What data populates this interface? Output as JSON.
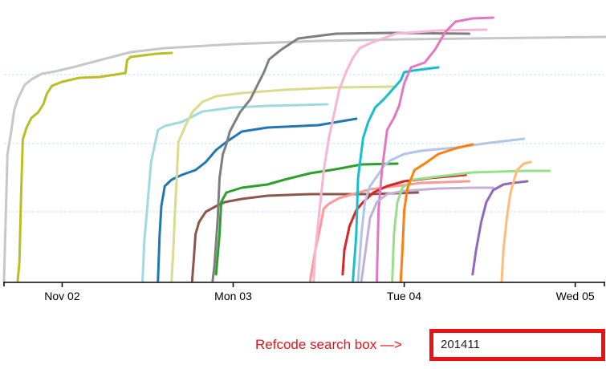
{
  "chart_data": {
    "type": "line",
    "title": "",
    "xlabel": "",
    "ylabel": "",
    "x_axis": {
      "ticks": [
        "Nov 02",
        "Mon 03",
        "Tue 04",
        "Wed 05"
      ],
      "tick_days": [
        2,
        3,
        4,
        5
      ],
      "range_days": [
        1.66,
        5.18
      ]
    },
    "y_range": [
      0,
      354
    ],
    "gridlines_y": [
      88,
      173,
      259
    ],
    "grid": true,
    "series": [
      {
        "color": "#c7c7c7",
        "points": [
          [
            1.66,
            2
          ],
          [
            1.67,
            80
          ],
          [
            1.68,
            160
          ],
          [
            1.7,
            185
          ],
          [
            1.72,
            215
          ],
          [
            1.74,
            228
          ],
          [
            1.78,
            246
          ],
          [
            1.82,
            253
          ],
          [
            1.88,
            260
          ],
          [
            1.96,
            263
          ],
          [
            2.06,
            268
          ],
          [
            2.22,
            277
          ],
          [
            2.4,
            287
          ],
          [
            2.6,
            292
          ],
          [
            3.0,
            297
          ],
          [
            3.5,
            301
          ],
          [
            4.0,
            303
          ],
          [
            5.18,
            306
          ]
        ]
      },
      {
        "color": "#bcbd22",
        "points": [
          [
            1.74,
            2
          ],
          [
            1.75,
            25
          ],
          [
            1.76,
            110
          ],
          [
            1.77,
            178
          ],
          [
            1.79,
            192
          ],
          [
            1.82,
            205
          ],
          [
            1.86,
            212
          ],
          [
            1.89,
            222
          ],
          [
            1.91,
            235
          ],
          [
            1.94,
            245
          ],
          [
            2.0,
            250
          ],
          [
            2.1,
            255
          ],
          [
            2.22,
            256
          ],
          [
            2.37,
            261
          ],
          [
            2.38,
            277
          ],
          [
            2.4,
            281
          ],
          [
            2.55,
            285
          ],
          [
            2.64,
            286
          ]
        ]
      },
      {
        "color": "#9edae5",
        "points": [
          [
            2.47,
            2
          ],
          [
            2.48,
            50
          ],
          [
            2.5,
            100
          ],
          [
            2.52,
            150
          ],
          [
            2.54,
            170
          ],
          [
            2.56,
            190
          ],
          [
            2.6,
            195
          ],
          [
            2.7,
            200
          ],
          [
            2.82,
            213
          ],
          [
            3.0,
            218
          ],
          [
            3.2,
            220
          ],
          [
            3.55,
            222
          ]
        ]
      },
      {
        "color": "#1f77b4",
        "points": [
          [
            2.56,
            2
          ],
          [
            2.57,
            60
          ],
          [
            2.58,
            95
          ],
          [
            2.6,
            120
          ],
          [
            2.64,
            128
          ],
          [
            2.7,
            134
          ],
          [
            2.78,
            140
          ],
          [
            2.84,
            150
          ],
          [
            2.9,
            165
          ],
          [
            2.96,
            175
          ],
          [
            3.05,
            188
          ],
          [
            3.2,
            193
          ],
          [
            3.5,
            196
          ],
          [
            3.72,
            204
          ]
        ]
      },
      {
        "color": "#dbdb8d",
        "points": [
          [
            2.64,
            2
          ],
          [
            2.65,
            40
          ],
          [
            2.66,
            90
          ],
          [
            2.67,
            130
          ],
          [
            2.68,
            175
          ],
          [
            2.72,
            195
          ],
          [
            2.76,
            212
          ],
          [
            2.82,
            225
          ],
          [
            2.9,
            232
          ],
          [
            3.05,
            236
          ],
          [
            3.3,
            240
          ],
          [
            3.6,
            243
          ],
          [
            3.94,
            244
          ]
        ]
      },
      {
        "color": "#8c564b",
        "points": [
          [
            2.76,
            2
          ],
          [
            2.77,
            30
          ],
          [
            2.78,
            60
          ],
          [
            2.8,
            75
          ],
          [
            2.84,
            88
          ],
          [
            2.9,
            95
          ],
          [
            2.95,
            100
          ],
          [
            3.05,
            104
          ],
          [
            3.2,
            108
          ],
          [
            3.45,
            110
          ],
          [
            3.8,
            110
          ],
          [
            4.08,
            112
          ]
        ]
      },
      {
        "color": "#2ca02c",
        "points": [
          [
            2.9,
            10
          ],
          [
            2.92,
            60
          ],
          [
            2.93,
            100
          ],
          [
            2.96,
            112
          ],
          [
            3.05,
            118
          ],
          [
            3.2,
            122
          ],
          [
            3.3,
            128
          ],
          [
            3.45,
            136
          ],
          [
            3.6,
            141
          ],
          [
            3.75,
            147
          ],
          [
            3.96,
            148
          ]
        ]
      },
      {
        "color": "#7f7f7f",
        "points": [
          [
            2.88,
            2
          ],
          [
            2.89,
            20
          ],
          [
            2.91,
            80
          ],
          [
            2.92,
            130
          ],
          [
            2.94,
            160
          ],
          [
            2.96,
            172
          ],
          [
            2.98,
            188
          ],
          [
            3.0,
            196
          ],
          [
            3.04,
            212
          ],
          [
            3.1,
            228
          ],
          [
            3.14,
            245
          ],
          [
            3.18,
            262
          ],
          [
            3.21,
            278
          ],
          [
            3.28,
            290
          ],
          [
            3.38,
            304
          ],
          [
            3.6,
            310
          ],
          [
            3.92,
            311
          ],
          [
            4.38,
            310
          ]
        ]
      },
      {
        "color": "#ff9896",
        "points": [
          [
            3.45,
            2
          ],
          [
            3.48,
            40
          ],
          [
            3.51,
            70
          ],
          [
            3.53,
            92
          ],
          [
            3.56,
            98
          ],
          [
            3.62,
            105
          ],
          [
            3.7,
            110
          ],
          [
            3.8,
            116
          ],
          [
            3.95,
            120
          ],
          [
            4.1,
            124
          ],
          [
            4.38,
            126
          ]
        ]
      },
      {
        "color": "#f7b6d2",
        "points": [
          [
            3.47,
            2
          ],
          [
            3.48,
            40
          ],
          [
            3.51,
            100
          ],
          [
            3.53,
            140
          ],
          [
            3.56,
            180
          ],
          [
            3.59,
            210
          ],
          [
            3.62,
            240
          ],
          [
            3.66,
            262
          ],
          [
            3.7,
            280
          ],
          [
            3.74,
            292
          ],
          [
            3.8,
            298
          ],
          [
            3.95,
            310
          ],
          [
            4.2,
            314
          ],
          [
            4.48,
            315
          ]
        ]
      },
      {
        "color": "#d62728",
        "points": [
          [
            3.64,
            10
          ],
          [
            3.65,
            40
          ],
          [
            3.68,
            70
          ],
          [
            3.72,
            90
          ],
          [
            3.76,
            100
          ],
          [
            3.82,
            112
          ],
          [
            3.9,
            120
          ],
          [
            4.0,
            126
          ],
          [
            4.15,
            130
          ],
          [
            4.36,
            134
          ]
        ]
      },
      {
        "color": "#17becf",
        "points": [
          [
            3.7,
            2
          ],
          [
            3.72,
            60
          ],
          [
            3.73,
            130
          ],
          [
            3.76,
            180
          ],
          [
            3.79,
            200
          ],
          [
            3.83,
            218
          ],
          [
            3.88,
            228
          ],
          [
            3.93,
            240
          ],
          [
            3.98,
            252
          ],
          [
            4.0,
            262
          ],
          [
            4.05,
            264
          ],
          [
            4.2,
            268
          ]
        ]
      },
      {
        "color": "#aec7e8",
        "points": [
          [
            3.73,
            2
          ],
          [
            3.75,
            60
          ],
          [
            3.77,
            100
          ],
          [
            3.8,
            120
          ],
          [
            3.85,
            135
          ],
          [
            3.88,
            145
          ],
          [
            3.92,
            152
          ],
          [
            4.0,
            160
          ],
          [
            4.1,
            164
          ],
          [
            4.3,
            168
          ],
          [
            4.5,
            174
          ],
          [
            4.7,
            179
          ]
        ]
      },
      {
        "color": "#e377c2",
        "points": [
          [
            3.84,
            2
          ],
          [
            3.85,
            90
          ],
          [
            3.87,
            140
          ],
          [
            3.9,
            190
          ],
          [
            3.94,
            205
          ],
          [
            3.97,
            220
          ],
          [
            4.0,
            248
          ],
          [
            4.04,
            268
          ],
          [
            4.12,
            274
          ],
          [
            4.18,
            290
          ],
          [
            4.24,
            312
          ],
          [
            4.3,
            325
          ],
          [
            4.4,
            329
          ],
          [
            4.52,
            330
          ]
        ]
      },
      {
        "color": "#c5b0d5",
        "points": [
          [
            3.75,
            2
          ],
          [
            3.8,
            80
          ],
          [
            3.84,
            100
          ],
          [
            3.9,
            110
          ],
          [
            4.0,
            114
          ],
          [
            4.2,
            117
          ],
          [
            4.4,
            118
          ],
          [
            4.52,
            118
          ]
        ]
      },
      {
        "color": "#98df8a",
        "points": [
          [
            3.93,
            2
          ],
          [
            3.94,
            60
          ],
          [
            3.96,
            100
          ],
          [
            3.99,
            118
          ],
          [
            4.05,
            128
          ],
          [
            4.2,
            132
          ],
          [
            4.4,
            137
          ],
          [
            4.7,
            139
          ],
          [
            4.85,
            139
          ]
        ]
      },
      {
        "color": "#ff7f0e",
        "points": [
          [
            3.98,
            2
          ],
          [
            3.99,
            40
          ],
          [
            4.0,
            90
          ],
          [
            4.02,
            118
          ],
          [
            4.06,
            140
          ],
          [
            4.12,
            148
          ],
          [
            4.2,
            160
          ],
          [
            4.3,
            167
          ],
          [
            4.4,
            172
          ]
        ]
      },
      {
        "color": "#9467bd",
        "points": [
          [
            4.4,
            10
          ],
          [
            4.42,
            40
          ],
          [
            4.45,
            75
          ],
          [
            4.48,
            100
          ],
          [
            4.52,
            115
          ],
          [
            4.58,
            122
          ],
          [
            4.64,
            124
          ],
          [
            4.72,
            126
          ]
        ]
      },
      {
        "color": "#ffbb78",
        "points": [
          [
            4.57,
            2
          ],
          [
            4.58,
            40
          ],
          [
            4.6,
            80
          ],
          [
            4.62,
            110
          ],
          [
            4.64,
            126
          ],
          [
            4.66,
            140
          ],
          [
            4.7,
            148
          ],
          [
            4.74,
            150
          ]
        ]
      }
    ]
  },
  "search": {
    "hint": "Refcode search box —>",
    "value": "201411"
  }
}
